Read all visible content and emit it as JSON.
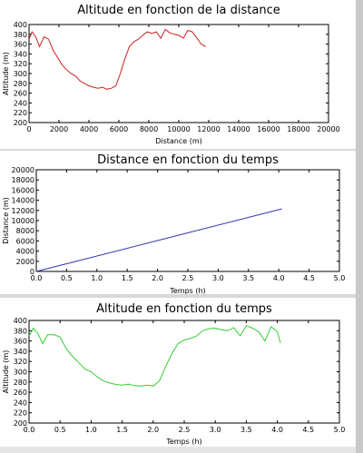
{
  "status_bar": {
    "text": ""
  },
  "chart_data": [
    {
      "type": "line",
      "title": "Altitude en fonction de la distance",
      "xlabel": "Distance (m)",
      "ylabel": "Altitude (m)",
      "xlim": [
        0,
        20000
      ],
      "ylim": [
        200,
        400
      ],
      "xticks": [
        0,
        2000,
        4000,
        6000,
        8000,
        10000,
        12000,
        14000,
        16000,
        18000,
        20000
      ],
      "yticks": [
        200,
        220,
        240,
        260,
        280,
        300,
        320,
        340,
        360,
        380,
        400
      ],
      "color": "#cc2222",
      "series": [
        {
          "x": [
            0,
            200,
            450,
            700,
            1000,
            1300,
            1600,
            1900,
            2200,
            2500,
            2800,
            3100,
            3400,
            3700,
            4000,
            4300,
            4600,
            4900,
            5200,
            5500,
            5800,
            6100,
            6400,
            6700,
            7000,
            7300,
            7600,
            7900,
            8200,
            8500,
            8800,
            9100,
            9400,
            9700,
            10000,
            10300,
            10600,
            10900,
            11200,
            11500,
            11800
          ],
          "y": [
            370,
            385,
            375,
            355,
            375,
            370,
            348,
            333,
            318,
            308,
            300,
            295,
            285,
            280,
            275,
            272,
            270,
            272,
            268,
            270,
            275,
            300,
            330,
            355,
            365,
            370,
            378,
            385,
            382,
            385,
            372,
            390,
            383,
            380,
            378,
            372,
            388,
            385,
            373,
            360,
            355
          ]
        }
      ]
    },
    {
      "type": "line",
      "title": "Distance en fonction du temps",
      "xlabel": "Temps (h)",
      "ylabel": "Distance (m)",
      "xlim": [
        0,
        5
      ],
      "ylim": [
        0,
        20000
      ],
      "xticks": [
        0.0,
        0.5,
        1.0,
        1.5,
        2.0,
        2.5,
        3.0,
        3.5,
        4.0,
        4.5,
        5.0
      ],
      "yticks": [
        0,
        2000,
        4000,
        6000,
        8000,
        10000,
        12000,
        14000,
        16000,
        18000,
        20000
      ],
      "color": "#3333aa",
      "series": [
        {
          "x": [
            0,
            4.05
          ],
          "y": [
            0,
            12300
          ]
        }
      ]
    },
    {
      "type": "line",
      "title": "Altitude en fonction du temps",
      "xlabel": "Temps (h)",
      "ylabel": "Altitude (m)",
      "xlim": [
        0,
        5
      ],
      "ylim": [
        200,
        400
      ],
      "xticks": [
        0.0,
        0.5,
        1.0,
        1.5,
        2.0,
        2.5,
        3.0,
        3.5,
        4.0,
        4.5,
        5.0
      ],
      "yticks": [
        200,
        220,
        240,
        260,
        280,
        300,
        320,
        340,
        360,
        380,
        400
      ],
      "color": "#33cc33",
      "series": [
        {
          "x": [
            0,
            0.07,
            0.14,
            0.22,
            0.3,
            0.4,
            0.5,
            0.6,
            0.7,
            0.8,
            0.9,
            1.0,
            1.1,
            1.2,
            1.3,
            1.4,
            1.5,
            1.6,
            1.7,
            1.8,
            1.9,
            2.0,
            2.1,
            2.2,
            2.3,
            2.4,
            2.5,
            2.6,
            2.7,
            2.8,
            2.9,
            3.0,
            3.1,
            3.2,
            3.3,
            3.4,
            3.5,
            3.6,
            3.7,
            3.8,
            3.9,
            4.0,
            4.05
          ],
          "y": [
            370,
            385,
            375,
            355,
            372,
            372,
            368,
            345,
            330,
            318,
            305,
            300,
            290,
            282,
            278,
            275,
            274,
            276,
            273,
            272,
            274,
            272,
            282,
            310,
            335,
            355,
            362,
            365,
            370,
            380,
            384,
            385,
            382,
            380,
            386,
            370,
            390,
            385,
            378,
            360,
            388,
            378,
            356
          ]
        }
      ]
    }
  ]
}
